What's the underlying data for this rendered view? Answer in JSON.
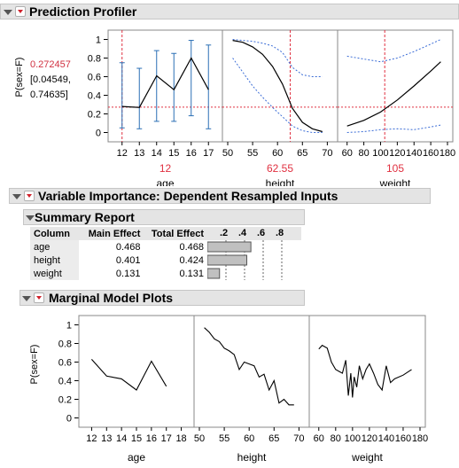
{
  "profiler": {
    "title": "Prediction Profiler",
    "ylabel": "P(sex=F)",
    "pred_value": "0.272457",
    "ci_line1": "[0.04549,",
    "ci_line2": "0.74635]",
    "panels": [
      {
        "xlabel": "age",
        "current": "12",
        "xticks": [
          "12",
          "13",
          "14",
          "15",
          "16",
          "17"
        ]
      },
      {
        "xlabel": "height",
        "current": "62.55",
        "xticks": [
          "50",
          "55",
          "60",
          "65",
          "70"
        ]
      },
      {
        "xlabel": "weight",
        "current": "105",
        "xticks": [
          "60",
          "80",
          "100",
          "120",
          "140",
          "160",
          "180"
        ]
      }
    ],
    "yticks": [
      "0",
      "0.2",
      "0.4",
      "0.6",
      "0.8",
      "1"
    ],
    "colors": {
      "mean": "#000000",
      "ci": "#3a6cd6",
      "ref": "#e03040",
      "errbar": "#2b6fb5"
    }
  },
  "importance": {
    "title": "Variable Importance: Dependent Resampled Inputs",
    "summary_title": "Summary Report",
    "columns": [
      "Column",
      "Main Effect",
      "Total Effect"
    ],
    "bar_ticks": [
      ".2",
      ".4",
      ".6",
      ".8"
    ],
    "rows": [
      {
        "column": "age",
        "main": "0.468",
        "total": "0.468",
        "bar": 0.468
      },
      {
        "column": "height",
        "main": "0.401",
        "total": "0.424",
        "bar": 0.424
      },
      {
        "column": "weight",
        "main": "0.131",
        "total": "0.131",
        "bar": 0.131
      }
    ]
  },
  "marginal": {
    "title": "Marginal Model Plots",
    "ylabel": "P(sex=F)",
    "yticks": [
      "0",
      "0.2",
      "0.4",
      "0.6",
      "0.8",
      "1"
    ],
    "panels": [
      {
        "xlabel": "age",
        "xticks": [
          "12",
          "13",
          "14",
          "15",
          "16",
          "17",
          "18"
        ]
      },
      {
        "xlabel": "height",
        "xticks": [
          "50",
          "55",
          "60",
          "65",
          "70"
        ]
      },
      {
        "xlabel": "weight",
        "xticks": [
          "60",
          "80",
          "100",
          "120",
          "140",
          "160",
          "180"
        ]
      }
    ]
  },
  "chart_data": [
    {
      "type": "line",
      "title": "Prediction Profiler",
      "ylabel": "P(sex=F)",
      "ylim": [
        -0.1,
        1.1
      ],
      "panels": [
        {
          "xlabel": "age",
          "xlim": [
            11.5,
            17.5
          ],
          "current_x": 12,
          "ref_y": 0.272457,
          "x": [
            12,
            13,
            14,
            15,
            16,
            17
          ],
          "mean": [
            0.28,
            0.27,
            0.61,
            0.46,
            0.8,
            0.46
          ],
          "lower": [
            0.05,
            0.04,
            0.12,
            0.12,
            0.18,
            0.04
          ],
          "upper": [
            0.75,
            0.69,
            0.88,
            0.85,
            0.99,
            0.94
          ]
        },
        {
          "xlabel": "height",
          "xlim": [
            50,
            71
          ],
          "current_x": 62.55,
          "ref_y": 0.272457,
          "x": [
            51,
            53,
            55,
            57,
            59,
            61,
            63,
            65,
            67,
            69
          ],
          "mean": [
            0.99,
            0.97,
            0.92,
            0.84,
            0.71,
            0.52,
            0.26,
            0.11,
            0.04,
            0.01
          ],
          "upper": [
            1.0,
            0.99,
            0.98,
            0.96,
            0.93,
            0.86,
            0.7,
            0.62,
            0.6,
            0.6
          ],
          "lower": [
            0.8,
            0.65,
            0.5,
            0.38,
            0.27,
            0.17,
            0.07,
            0.02,
            0.0,
            0.0
          ]
        },
        {
          "xlabel": "weight",
          "xlim": [
            55,
            180
          ],
          "current_x": 105,
          "ref_y": 0.272457,
          "x": [
            60,
            80,
            100,
            120,
            140,
            160,
            172
          ],
          "mean": [
            0.07,
            0.13,
            0.22,
            0.35,
            0.5,
            0.66,
            0.76
          ],
          "upper": [
            0.82,
            0.79,
            0.76,
            0.8,
            0.87,
            0.95,
            1.0
          ],
          "lower": [
            0.0,
            0.01,
            0.03,
            0.04,
            0.03,
            0.06,
            0.08
          ]
        }
      ]
    },
    {
      "type": "bar",
      "title": "Summary Report",
      "categories": [
        "age",
        "height",
        "weight"
      ],
      "values": [
        0.468,
        0.424,
        0.131
      ],
      "xlim": [
        0,
        1
      ]
    },
    {
      "type": "line",
      "title": "Marginal Model Plots",
      "ylabel": "P(sex=F)",
      "ylim": [
        -0.1,
        1.1
      ],
      "panels": [
        {
          "xlabel": "age",
          "xlim": [
            11.5,
            18.5
          ],
          "x": [
            12,
            13,
            14,
            15,
            16,
            17
          ],
          "y": [
            0.63,
            0.45,
            0.42,
            0.3,
            0.61,
            0.34
          ]
        },
        {
          "xlabel": "height",
          "xlim": [
            50,
            71
          ],
          "x": [
            51,
            52,
            53,
            54,
            55,
            56,
            57,
            58,
            59,
            60,
            61,
            62,
            63,
            64,
            65,
            66,
            67,
            68,
            69
          ],
          "y": [
            0.97,
            0.92,
            0.85,
            0.82,
            0.75,
            0.72,
            0.68,
            0.52,
            0.6,
            0.58,
            0.56,
            0.44,
            0.47,
            0.3,
            0.4,
            0.16,
            0.2,
            0.14,
            0.14
          ]
        },
        {
          "xlabel": "weight",
          "xlim": [
            55,
            180
          ],
          "x": [
            60,
            64,
            70,
            75,
            80,
            84,
            88,
            92,
            95,
            98,
            100,
            102,
            105,
            108,
            112,
            116,
            120,
            125,
            130,
            135,
            140,
            145,
            150,
            160,
            170
          ],
          "y": [
            0.74,
            0.78,
            0.75,
            0.6,
            0.52,
            0.5,
            0.48,
            0.62,
            0.24,
            0.48,
            0.22,
            0.44,
            0.33,
            0.56,
            0.42,
            0.52,
            0.58,
            0.48,
            0.36,
            0.3,
            0.56,
            0.38,
            0.42,
            0.46,
            0.52
          ]
        }
      ]
    }
  ]
}
